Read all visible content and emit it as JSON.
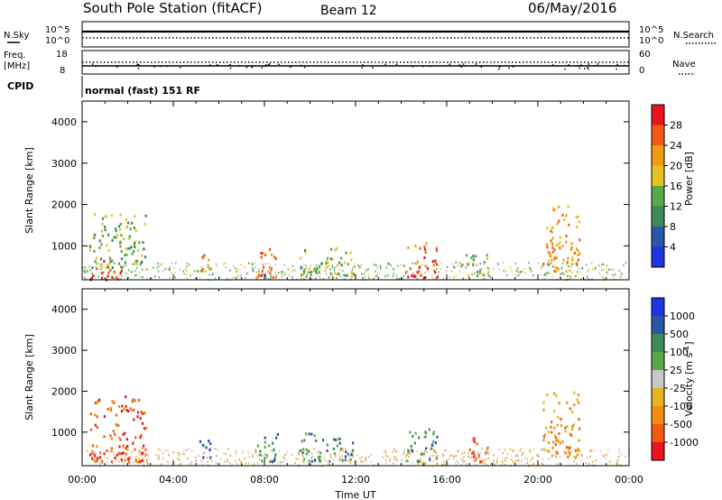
{
  "header": {
    "title": "South Pole Station (fitACF)",
    "beam": "Beam 12",
    "date": "06/May/2016"
  },
  "top_panels": {
    "nsky_label": "N.Sky",
    "nsky_ticks": [
      "10^5",
      "10^0"
    ],
    "nsearch_label": "N.Search",
    "nsearch_ticks": [
      "10^5",
      "10^0"
    ],
    "freq_label_1": "Freq.",
    "freq_label_2": "[MHz]",
    "freq_ticks": [
      "18",
      "8"
    ],
    "nave_label": "Nave",
    "nave_ticks": [
      "60",
      "0"
    ],
    "cpid_label": "CPID",
    "cpid_value": "normal (fast) 151 RF"
  },
  "colors": {
    "power": [
      "#1f35e0",
      "#2a56a8",
      "#3d8a5c",
      "#5aa84a",
      "#e6c21e",
      "#f29a12",
      "#f05a14",
      "#e8141e"
    ],
    "velocity": [
      "#e8141e",
      "#f05a14",
      "#f28c12",
      "#e6b41e",
      "#c8c8c8",
      "#5aa84a",
      "#3d8a5c",
      "#2a56a8",
      "#1f35e0"
    ],
    "ground": "#b4b4b4"
  },
  "chart_data": [
    {
      "type": "heatmap",
      "name": "power",
      "ylabel": "Slant Range [km]",
      "ylim": [
        180,
        4500
      ],
      "yticks": [
        "1000",
        "2000",
        "3000",
        "4000"
      ],
      "colorbar_label": "Power [dB]",
      "colorbar_ticks": [
        "4",
        "8",
        "12",
        "16",
        "20",
        "24",
        "28"
      ],
      "xlim": [
        0,
        24
      ],
      "blobs": [
        {
          "t0": 0.3,
          "t1": 1.7,
          "r0": 200,
          "r1": 700,
          "level": 7
        },
        {
          "t0": 0.3,
          "t1": 2.8,
          "r0": 500,
          "r1": 1800,
          "level": 3
        },
        {
          "t0": 5.1,
          "t1": 5.6,
          "r0": 400,
          "r1": 1000,
          "level": 5
        },
        {
          "t0": 7.6,
          "t1": 8.6,
          "r0": 250,
          "r1": 1000,
          "level": 6
        },
        {
          "t0": 9.5,
          "t1": 11.9,
          "r0": 300,
          "r1": 1000,
          "level": 3
        },
        {
          "t0": 14.2,
          "t1": 15.6,
          "r0": 250,
          "r1": 1100,
          "level": 6
        },
        {
          "t0": 16.8,
          "t1": 17.8,
          "r0": 300,
          "r1": 900,
          "level": 3
        },
        {
          "t0": 20.2,
          "t1": 21.8,
          "r0": 400,
          "r1": 2000,
          "level": 5
        }
      ]
    },
    {
      "type": "heatmap",
      "name": "velocity",
      "ylabel": "Slant Range [km]",
      "ylim": [
        180,
        4500
      ],
      "yticks": [
        "1000",
        "2000",
        "3000",
        "4000"
      ],
      "colorbar_label": "Velocity [m s",
      "colorbar_label_sup": "-1",
      "colorbar_label_end": "]",
      "colorbar_ticks": [
        "-1000",
        "-500",
        "-100",
        "-25",
        "25",
        "100",
        "500",
        "1000"
      ],
      "xlabel": "Time UT",
      "xticks": [
        "00:00",
        "04:00",
        "08:00",
        "12:00",
        "16:00",
        "20:00",
        "00:00"
      ],
      "xlim": [
        0,
        24
      ],
      "blobs": [
        {
          "t0": 0.3,
          "t1": 2.8,
          "r0": 300,
          "r1": 1900,
          "level": 1
        },
        {
          "t0": 5.1,
          "t1": 5.6,
          "r0": 400,
          "r1": 1000,
          "level": 7
        },
        {
          "t0": 7.6,
          "t1": 8.6,
          "r0": 300,
          "r1": 1000,
          "level": 6
        },
        {
          "t0": 9.5,
          "t1": 11.9,
          "r0": 300,
          "r1": 1000,
          "level": 6
        },
        {
          "t0": 14.2,
          "t1": 15.6,
          "r0": 300,
          "r1": 1100,
          "level": 6
        },
        {
          "t0": 16.8,
          "t1": 17.8,
          "r0": 300,
          "r1": 900,
          "level": 1
        },
        {
          "t0": 20.2,
          "t1": 21.8,
          "r0": 400,
          "r1": 2000,
          "level": 2
        }
      ]
    }
  ]
}
